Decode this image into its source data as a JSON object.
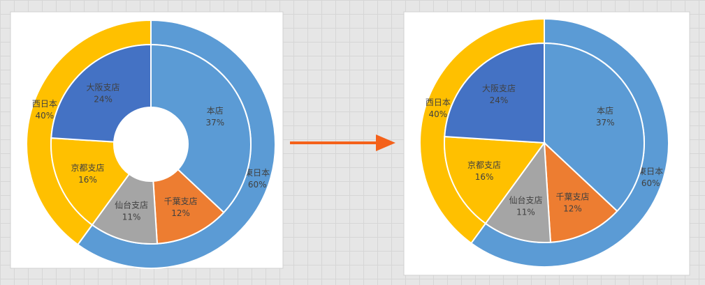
{
  "chart_data": [
    {
      "type": "donut",
      "outer": {
        "categories": [
          "東日本",
          "西日本"
        ],
        "values": [
          60,
          40
        ],
        "value_labels": [
          "60%",
          "40%"
        ],
        "colors": [
          "#5b9bd5",
          "#ffc000"
        ]
      },
      "inner": {
        "categories": [
          "本店",
          "千葉支店",
          "仙台支店",
          "京都支店",
          "大阪支店"
        ],
        "values": [
          37,
          12,
          11,
          16,
          24
        ],
        "value_labels": [
          "37%",
          "12%",
          "11%",
          "16%",
          "24%"
        ],
        "colors": [
          "#5b9bd5",
          "#ed7d31",
          "#a5a5a5",
          "#ffc000",
          "#4472c4"
        ]
      }
    },
    {
      "type": "pie",
      "outer": {
        "categories": [
          "東日本",
          "西日本"
        ],
        "values": [
          60,
          40
        ],
        "value_labels": [
          "60%",
          "40%"
        ],
        "colors": [
          "#5b9bd5",
          "#ffc000"
        ]
      },
      "inner": {
        "categories": [
          "本店",
          "千葉支店",
          "仙台支店",
          "京都支店",
          "大阪支店"
        ],
        "values": [
          37,
          12,
          11,
          16,
          24
        ],
        "value_labels": [
          "37%",
          "12%",
          "11%",
          "16%",
          "24%"
        ],
        "colors": [
          "#5b9bd5",
          "#ed7d31",
          "#a5a5a5",
          "#ffc000",
          "#4472c4"
        ]
      }
    }
  ]
}
